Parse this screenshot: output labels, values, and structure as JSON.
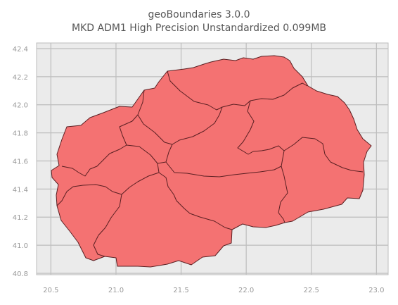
{
  "figure": {
    "title_line1": "geoBoundaries 3.0.0",
    "title_line2": "MKD ADM1 High Precision Unstandardized 0.099MB"
  },
  "map": {
    "xlim": [
      20.39,
      23.09
    ],
    "ylim": [
      40.79,
      42.44
    ],
    "x_ticks": [
      "20.5",
      "21.0",
      "21.5",
      "22.0",
      "22.5",
      "23.0"
    ],
    "y_ticks": [
      "42.4",
      "42.2",
      "42.0",
      "41.8",
      "41.6",
      "41.4",
      "41.2",
      "41.0",
      "40.8"
    ],
    "grid": true,
    "colors": {
      "background": "#ebebeb",
      "grid": "#bdbdbd",
      "fill": "#f47272",
      "outline": "#5a1f22"
    }
  }
}
